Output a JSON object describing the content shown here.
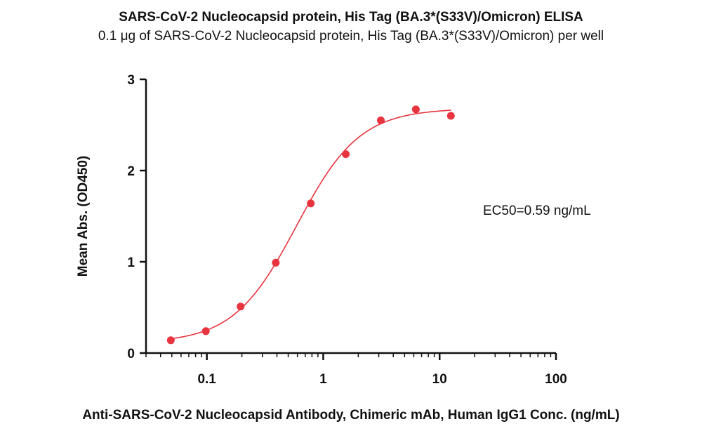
{
  "chart_data": {
    "type": "scatter",
    "title": "SARS-CoV-2 Nucleocapsid protein, His Tag (BA.3*(S33V)/Omicron) ELISA",
    "subtitle": "0.1 μg of SARS-CoV-2 Nucleocapsid protein, His Tag (BA.3*(S33V)/Omicron) per well",
    "xlabel": "Anti-SARS-CoV-2 Nucleocapsid Antibody, Chimeric mAb, Human IgG1 Conc. (ng/mL)",
    "ylabel": "Mean Abs. (OD450)",
    "x_scale": "log",
    "xlim": [
      0.03,
      100
    ],
    "ylim": [
      0,
      3
    ],
    "x_ticks": [
      0.1,
      1,
      10,
      100
    ],
    "x_tick_labels": [
      "0.1",
      "1",
      "10",
      "100"
    ],
    "y_ticks": [
      0,
      1,
      2,
      3
    ],
    "y_tick_labels": [
      "0",
      "1",
      "2",
      "3"
    ],
    "grid": false,
    "color": "#e8343f",
    "series": [
      {
        "x": [
          0.049,
          0.098,
          0.195,
          0.391,
          0.781,
          1.563,
          3.125,
          6.25,
          12.5
        ],
        "y": [
          0.14,
          0.24,
          0.51,
          0.99,
          1.64,
          2.18,
          2.55,
          2.67,
          2.6
        ]
      }
    ],
    "fit": {
      "type": "4PL",
      "bottom": 0.11,
      "top": 2.68,
      "ec50": 0.59,
      "hill": 1.6
    },
    "annotation": "EC50=0.59 ng/mL"
  }
}
